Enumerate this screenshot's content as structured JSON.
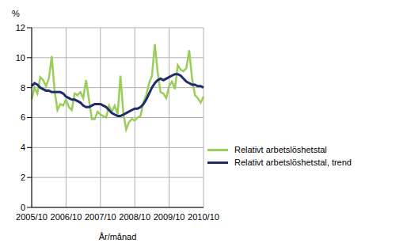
{
  "chart_data": {
    "type": "line",
    "x_label": "År/månad",
    "y_label": "%",
    "categories": [
      "2005/10",
      null,
      null,
      null,
      null,
      null,
      null,
      null,
      null,
      null,
      null,
      null,
      "2006/10",
      null,
      null,
      null,
      null,
      null,
      null,
      null,
      null,
      null,
      null,
      null,
      "2007/10",
      null,
      null,
      null,
      null,
      null,
      null,
      null,
      null,
      null,
      null,
      null,
      "2008/10",
      null,
      null,
      null,
      null,
      null,
      null,
      null,
      null,
      null,
      null,
      null,
      "2009/10",
      null,
      null,
      null,
      null,
      null,
      null,
      null,
      null,
      null,
      null,
      null,
      "2010/10"
    ],
    "series": [
      {
        "name": "Relativt arbetslöshetstal",
        "color": "#9acd5a",
        "values": [
          7.2,
          8.0,
          7.6,
          8.7,
          8.5,
          8.1,
          8.6,
          10.1,
          7.8,
          6.5,
          6.9,
          6.8,
          7.2,
          6.7,
          6.5,
          7.6,
          7.5,
          7.7,
          7.3,
          8.5,
          7.2,
          5.9,
          5.9,
          6.4,
          6.2,
          6.1,
          6.0,
          6.8,
          6.4,
          6.8,
          6.2,
          8.8,
          6.3,
          5.2,
          5.7,
          5.9,
          5.8,
          6.0,
          6.1,
          7.0,
          7.5,
          8.3,
          8.8,
          10.9,
          9.0,
          7.7,
          7.6,
          7.3,
          8.1,
          8.4,
          7.9,
          9.5,
          9.2,
          9.1,
          9.3,
          10.5,
          8.6,
          7.5,
          7.3,
          7.0,
          7.4
        ]
      },
      {
        "name": "Relativt arbetslöshetstal, trend",
        "color": "#1f2d6e",
        "values": [
          8.1,
          8.3,
          8.2,
          8.0,
          7.9,
          7.8,
          7.8,
          7.7,
          7.7,
          7.7,
          7.7,
          7.6,
          7.4,
          7.3,
          7.2,
          7.2,
          7.1,
          7.0,
          6.8,
          6.7,
          6.7,
          6.8,
          6.9,
          6.9,
          6.9,
          6.8,
          6.7,
          6.5,
          6.3,
          6.2,
          6.1,
          6.1,
          6.2,
          6.3,
          6.4,
          6.5,
          6.6,
          6.6,
          6.7,
          6.9,
          7.2,
          7.6,
          8.0,
          8.3,
          8.5,
          8.6,
          8.5,
          8.6,
          8.7,
          8.8,
          8.9,
          8.9,
          8.8,
          8.6,
          8.4,
          8.3,
          8.2,
          8.2,
          8.1,
          8.1,
          8.0
        ]
      }
    ],
    "ylim": [
      0,
      12
    ],
    "yticks": [
      0,
      2,
      4,
      6,
      8,
      10,
      12
    ],
    "grid": true,
    "legend": "lower right"
  }
}
